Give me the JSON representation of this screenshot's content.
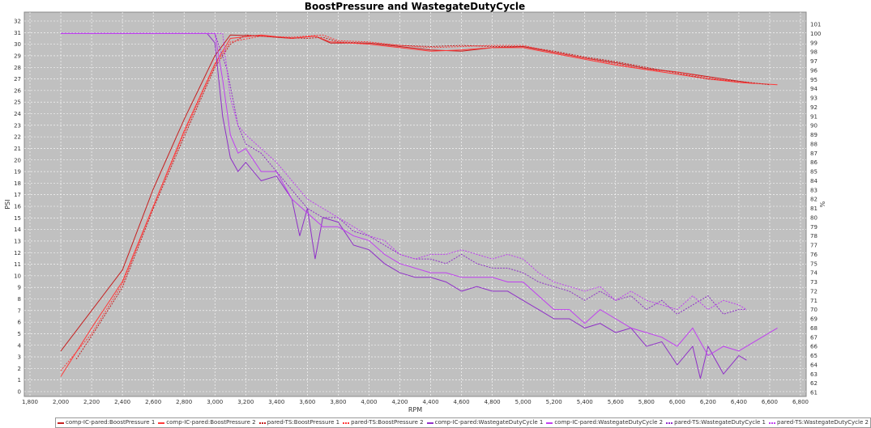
{
  "chart_data": {
    "type": "line",
    "title": "BoostPressure and WastegateDutyCycle",
    "xlabel": "RPM",
    "ylabel": "PSI",
    "y2label": "%",
    "xlim": [
      1800,
      6800
    ],
    "ylim": [
      0,
      32
    ],
    "y2lim": [
      61,
      101
    ],
    "grid": true,
    "legend": "bottom",
    "background": "#c0c0c0",
    "series": [
      {
        "name": "comp-IC-pared:BoostPressure 1",
        "axis": "left",
        "color": "#c62020",
        "dash": false,
        "points": [
          [
            2000,
            3.5
          ],
          [
            2200,
            7
          ],
          [
            2400,
            10.5
          ],
          [
            2600,
            17.5
          ],
          [
            2800,
            23.5
          ],
          [
            3000,
            29
          ],
          [
            3100,
            30.8
          ],
          [
            3300,
            30.7
          ],
          [
            3500,
            30.5
          ],
          [
            3650,
            30.7
          ],
          [
            3750,
            30.1
          ],
          [
            4000,
            30.1
          ],
          [
            4200,
            29.8
          ],
          [
            4400,
            29.5
          ],
          [
            4600,
            29.4
          ],
          [
            4800,
            29.7
          ],
          [
            5000,
            29.8
          ],
          [
            5200,
            29.3
          ],
          [
            5400,
            28.8
          ],
          [
            5600,
            28.4
          ],
          [
            5800,
            27.9
          ],
          [
            6000,
            27.6
          ],
          [
            6200,
            27.2
          ],
          [
            6400,
            26.8
          ],
          [
            6500,
            26.6
          ]
        ]
      },
      {
        "name": "comp-IC-pared:BoostPressure 2",
        "axis": "left",
        "color": "#ff3a3a",
        "dash": false,
        "points": [
          [
            2000,
            1.3
          ],
          [
            2200,
            5.5
          ],
          [
            2400,
            9.5
          ],
          [
            2600,
            16
          ],
          [
            2800,
            22.5
          ],
          [
            3000,
            28.3
          ],
          [
            3100,
            30.5
          ],
          [
            3300,
            30.8
          ],
          [
            3500,
            30.5
          ],
          [
            3650,
            30.7
          ],
          [
            3750,
            30.2
          ],
          [
            4000,
            30
          ],
          [
            4200,
            29.7
          ],
          [
            4400,
            29.4
          ],
          [
            4600,
            29.5
          ],
          [
            4800,
            29.7
          ],
          [
            5000,
            29.7
          ],
          [
            5200,
            29.2
          ],
          [
            5400,
            28.7
          ],
          [
            5600,
            28.2
          ],
          [
            5800,
            27.8
          ],
          [
            6000,
            27.4
          ],
          [
            6200,
            27
          ],
          [
            6400,
            26.7
          ],
          [
            6650,
            26.5
          ]
        ]
      },
      {
        "name": "pared-TS:BoostPressure 1",
        "axis": "left",
        "color": "#c62020",
        "dash": true,
        "points": [
          [
            2100,
            2.8
          ],
          [
            2200,
            4.8
          ],
          [
            2400,
            9
          ],
          [
            2600,
            15.8
          ],
          [
            2800,
            22
          ],
          [
            3000,
            28
          ],
          [
            3100,
            30
          ],
          [
            3200,
            30.8
          ],
          [
            3400,
            30.6
          ],
          [
            3600,
            30.5
          ],
          [
            3700,
            30.6
          ],
          [
            3800,
            30.2
          ],
          [
            4000,
            30.1
          ],
          [
            4200,
            29.9
          ],
          [
            4400,
            29.8
          ],
          [
            4600,
            29.9
          ],
          [
            4800,
            29.8
          ],
          [
            5000,
            29.8
          ],
          [
            5200,
            29.4
          ],
          [
            5400,
            28.9
          ],
          [
            5600,
            28.5
          ],
          [
            5800,
            28
          ],
          [
            6000,
            27.5
          ],
          [
            6200,
            27
          ],
          [
            6400,
            26.8
          ],
          [
            6600,
            26.5
          ]
        ]
      },
      {
        "name": "pared-TS:BoostPressure 2",
        "axis": "left",
        "color": "#ff3a3a",
        "dash": true,
        "points": [
          [
            2000,
            1.8
          ],
          [
            2200,
            5
          ],
          [
            2400,
            9.3
          ],
          [
            2600,
            16
          ],
          [
            2800,
            22.3
          ],
          [
            3000,
            28.2
          ],
          [
            3100,
            30.2
          ],
          [
            3300,
            30.7
          ],
          [
            3500,
            30.6
          ],
          [
            3700,
            30.8
          ],
          [
            3800,
            30.3
          ],
          [
            4000,
            30.2
          ],
          [
            4200,
            29.9
          ],
          [
            4400,
            29.7
          ],
          [
            4600,
            29.8
          ],
          [
            4800,
            29.9
          ],
          [
            5000,
            29.9
          ],
          [
            5200,
            29.3
          ],
          [
            5400,
            28.8
          ],
          [
            5600,
            28.3
          ],
          [
            5800,
            27.8
          ],
          [
            6000,
            27.6
          ],
          [
            6200,
            27.1
          ],
          [
            6400,
            26.7
          ],
          [
            6500,
            26.6
          ]
        ]
      },
      {
        "name": "comp-IC-pared:WastegateDutyCycle 1",
        "axis": "right",
        "color": "#9030c8",
        "dash": false,
        "points": [
          [
            2000,
            100
          ],
          [
            2950,
            100
          ],
          [
            3000,
            99
          ],
          [
            3050,
            91
          ],
          [
            3100,
            86.5
          ],
          [
            3150,
            85
          ],
          [
            3200,
            86
          ],
          [
            3300,
            84
          ],
          [
            3400,
            84.5
          ],
          [
            3500,
            82
          ],
          [
            3550,
            78
          ],
          [
            3600,
            81
          ],
          [
            3650,
            75.5
          ],
          [
            3700,
            80
          ],
          [
            3800,
            79.5
          ],
          [
            3900,
            77
          ],
          [
            4000,
            76.5
          ],
          [
            4100,
            75
          ],
          [
            4200,
            74
          ],
          [
            4300,
            73.5
          ],
          [
            4400,
            73.5
          ],
          [
            4500,
            73
          ],
          [
            4600,
            72
          ],
          [
            4700,
            72.5
          ],
          [
            4800,
            72
          ],
          [
            4900,
            72
          ],
          [
            5000,
            71
          ],
          [
            5100,
            70
          ],
          [
            5200,
            69
          ],
          [
            5300,
            69
          ],
          [
            5400,
            68
          ],
          [
            5500,
            68.5
          ],
          [
            5600,
            67.5
          ],
          [
            5700,
            68
          ],
          [
            5800,
            66
          ],
          [
            5900,
            66.5
          ],
          [
            6000,
            64
          ],
          [
            6100,
            66
          ],
          [
            6150,
            62.5
          ],
          [
            6200,
            66
          ],
          [
            6300,
            63
          ],
          [
            6400,
            65
          ],
          [
            6450,
            64.5
          ]
        ]
      },
      {
        "name": "comp-IC-pared:WastegateDutyCycle 2",
        "axis": "right",
        "color": "#c040f0",
        "dash": false,
        "points": [
          [
            2000,
            100
          ],
          [
            3000,
            100
          ],
          [
            3050,
            95
          ],
          [
            3100,
            89
          ],
          [
            3150,
            87
          ],
          [
            3200,
            87.5
          ],
          [
            3300,
            85
          ],
          [
            3400,
            85
          ],
          [
            3500,
            82
          ],
          [
            3600,
            80.5
          ],
          [
            3700,
            79
          ],
          [
            3800,
            79
          ],
          [
            3900,
            78
          ],
          [
            4000,
            77.5
          ],
          [
            4100,
            76
          ],
          [
            4200,
            75
          ],
          [
            4400,
            74
          ],
          [
            4500,
            74
          ],
          [
            4600,
            73.5
          ],
          [
            4700,
            73.5
          ],
          [
            4800,
            73.5
          ],
          [
            4900,
            73
          ],
          [
            5000,
            73
          ],
          [
            5100,
            71.5
          ],
          [
            5200,
            70
          ],
          [
            5300,
            70
          ],
          [
            5400,
            68.5
          ],
          [
            5500,
            70
          ],
          [
            5600,
            69
          ],
          [
            5700,
            68
          ],
          [
            5800,
            67.5
          ],
          [
            5900,
            67
          ],
          [
            6000,
            66
          ],
          [
            6100,
            68
          ],
          [
            6200,
            65
          ],
          [
            6300,
            66
          ],
          [
            6400,
            65.5
          ],
          [
            6500,
            66.5
          ],
          [
            6600,
            67.5
          ],
          [
            6650,
            68
          ]
        ]
      },
      {
        "name": "pared-TS:WastegateDutyCycle 1",
        "axis": "right",
        "color": "#9030c8",
        "dash": true,
        "points": [
          [
            2000,
            100
          ],
          [
            3000,
            100
          ],
          [
            3080,
            96
          ],
          [
            3150,
            90
          ],
          [
            3200,
            88
          ],
          [
            3300,
            87
          ],
          [
            3400,
            85
          ],
          [
            3500,
            83
          ],
          [
            3600,
            81
          ],
          [
            3700,
            80
          ],
          [
            3800,
            80
          ],
          [
            3900,
            78.5
          ],
          [
            4000,
            78
          ],
          [
            4100,
            77
          ],
          [
            4200,
            76
          ],
          [
            4300,
            75.5
          ],
          [
            4400,
            75.5
          ],
          [
            4500,
            75
          ],
          [
            4600,
            76
          ],
          [
            4700,
            75
          ],
          [
            4800,
            74.5
          ],
          [
            4900,
            74.5
          ],
          [
            5000,
            74
          ],
          [
            5100,
            73
          ],
          [
            5200,
            72.5
          ],
          [
            5300,
            72
          ],
          [
            5400,
            71
          ],
          [
            5500,
            72
          ],
          [
            5600,
            71
          ],
          [
            5700,
            71.5
          ],
          [
            5800,
            70
          ],
          [
            5900,
            71
          ],
          [
            6000,
            69.5
          ],
          [
            6100,
            70.5
          ],
          [
            6200,
            71.5
          ],
          [
            6300,
            69.5
          ],
          [
            6400,
            70
          ],
          [
            6450,
            70
          ]
        ]
      },
      {
        "name": "pared-TS:WastegateDutyCycle 2",
        "axis": "right",
        "color": "#c040f0",
        "dash": true,
        "points": [
          [
            2000,
            100
          ],
          [
            3050,
            100
          ],
          [
            3100,
            93
          ],
          [
            3150,
            90
          ],
          [
            3200,
            89
          ],
          [
            3300,
            87.5
          ],
          [
            3400,
            86
          ],
          [
            3500,
            84
          ],
          [
            3600,
            82
          ],
          [
            3700,
            81
          ],
          [
            3800,
            80
          ],
          [
            3900,
            79
          ],
          [
            4000,
            78
          ],
          [
            4100,
            77.5
          ],
          [
            4200,
            76
          ],
          [
            4300,
            75.5
          ],
          [
            4400,
            76
          ],
          [
            4500,
            76
          ],
          [
            4600,
            76.5
          ],
          [
            4700,
            76
          ],
          [
            4800,
            75.5
          ],
          [
            4900,
            76
          ],
          [
            5000,
            75.5
          ],
          [
            5100,
            74
          ],
          [
            5200,
            73
          ],
          [
            5300,
            72.5
          ],
          [
            5400,
            72
          ],
          [
            5500,
            72.5
          ],
          [
            5600,
            71
          ],
          [
            5700,
            72
          ],
          [
            5800,
            71
          ],
          [
            5900,
            70.5
          ],
          [
            6000,
            70
          ],
          [
            6100,
            71.5
          ],
          [
            6200,
            70
          ],
          [
            6300,
            71
          ],
          [
            6400,
            70.5
          ],
          [
            6450,
            70
          ]
        ]
      }
    ]
  }
}
